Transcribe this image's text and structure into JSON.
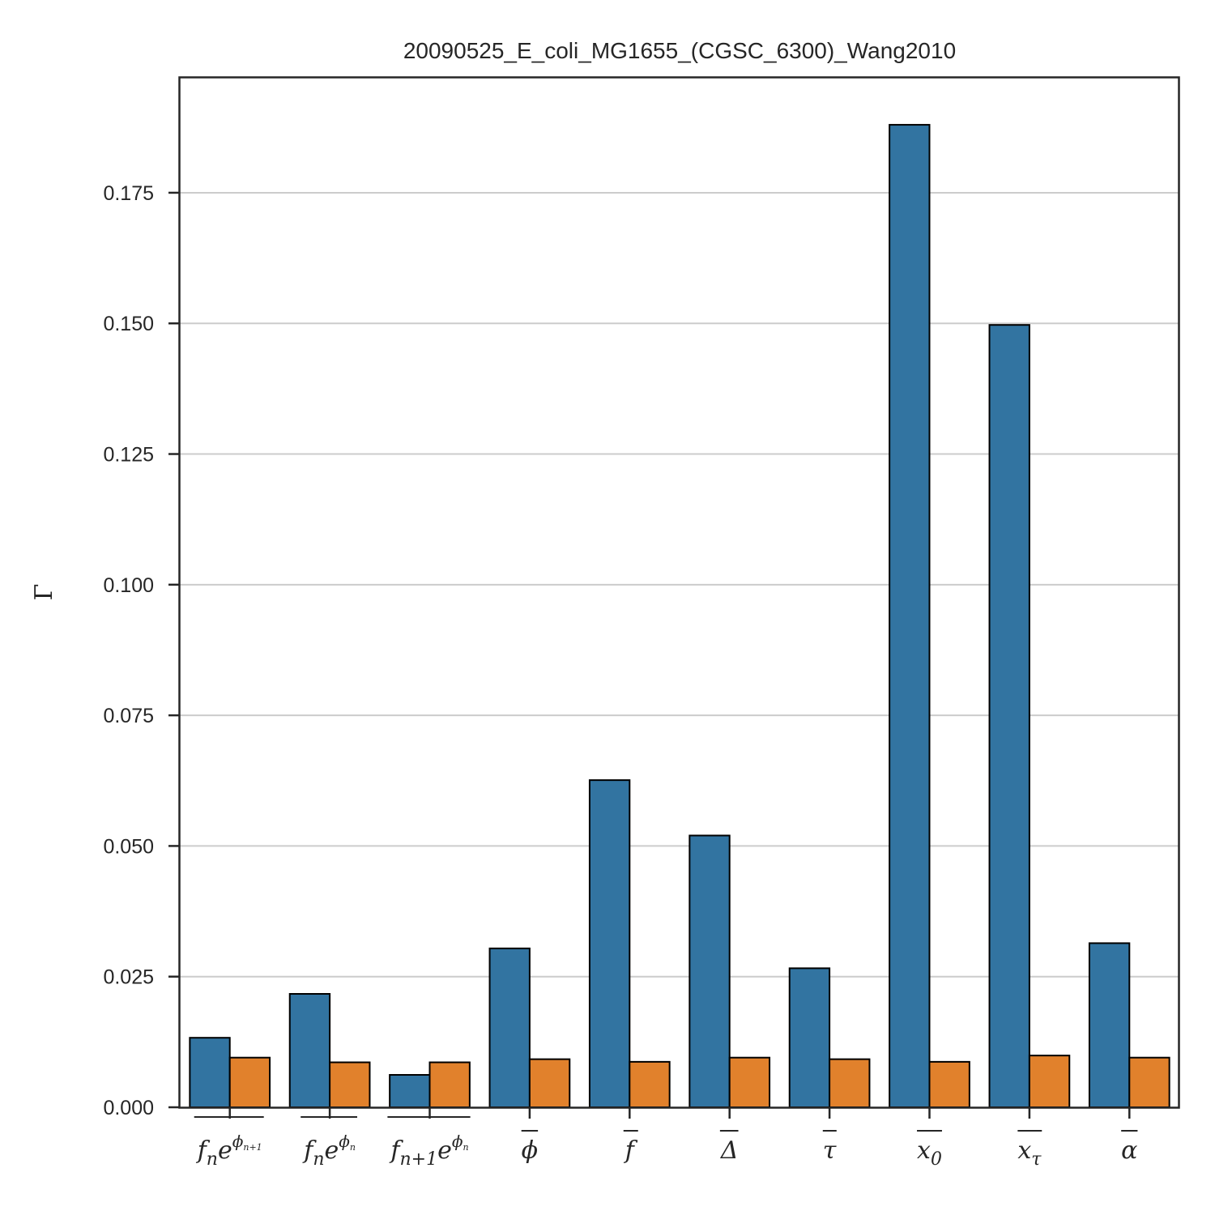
{
  "chart_data": {
    "type": "bar",
    "title": "20090525_E_coli_MG1655_(CGSC_6300)_Wang2010",
    "xlabel": "",
    "ylabel": "Γ",
    "ylim": [
      0,
      0.197
    ],
    "yticks": [
      "0.000",
      "0.025",
      "0.050",
      "0.075",
      "0.100",
      "0.125",
      "0.150",
      "0.175"
    ],
    "grid": "horizontal",
    "categories": [
      {
        "base": "f",
        "sub": "n",
        "sup": "ϕ",
        "supsub": "n+1",
        "mid": "e"
      },
      {
        "base": "f",
        "sub": "n",
        "sup": "ϕ",
        "supsub": "n",
        "mid": "e"
      },
      {
        "base": "f",
        "sub": "n+1",
        "sup": "ϕ",
        "supsub": "n",
        "mid": "e"
      },
      {
        "base": "ϕ"
      },
      {
        "base": "f"
      },
      {
        "base": "Δ"
      },
      {
        "base": "τ"
      },
      {
        "base": "x",
        "sub": "0"
      },
      {
        "base": "x",
        "sub": "τ"
      },
      {
        "base": "α"
      }
    ],
    "series": [
      {
        "color": "#3274a1",
        "values": [
          0.0133,
          0.0217,
          0.0062,
          0.0304,
          0.0626,
          0.052,
          0.0266,
          0.188,
          0.1497,
          0.0314
        ]
      },
      {
        "color": "#e1812c",
        "values": [
          0.0095,
          0.0086,
          0.0086,
          0.0092,
          0.0087,
          0.0095,
          0.0092,
          0.0087,
          0.0099,
          0.0095
        ]
      }
    ]
  }
}
